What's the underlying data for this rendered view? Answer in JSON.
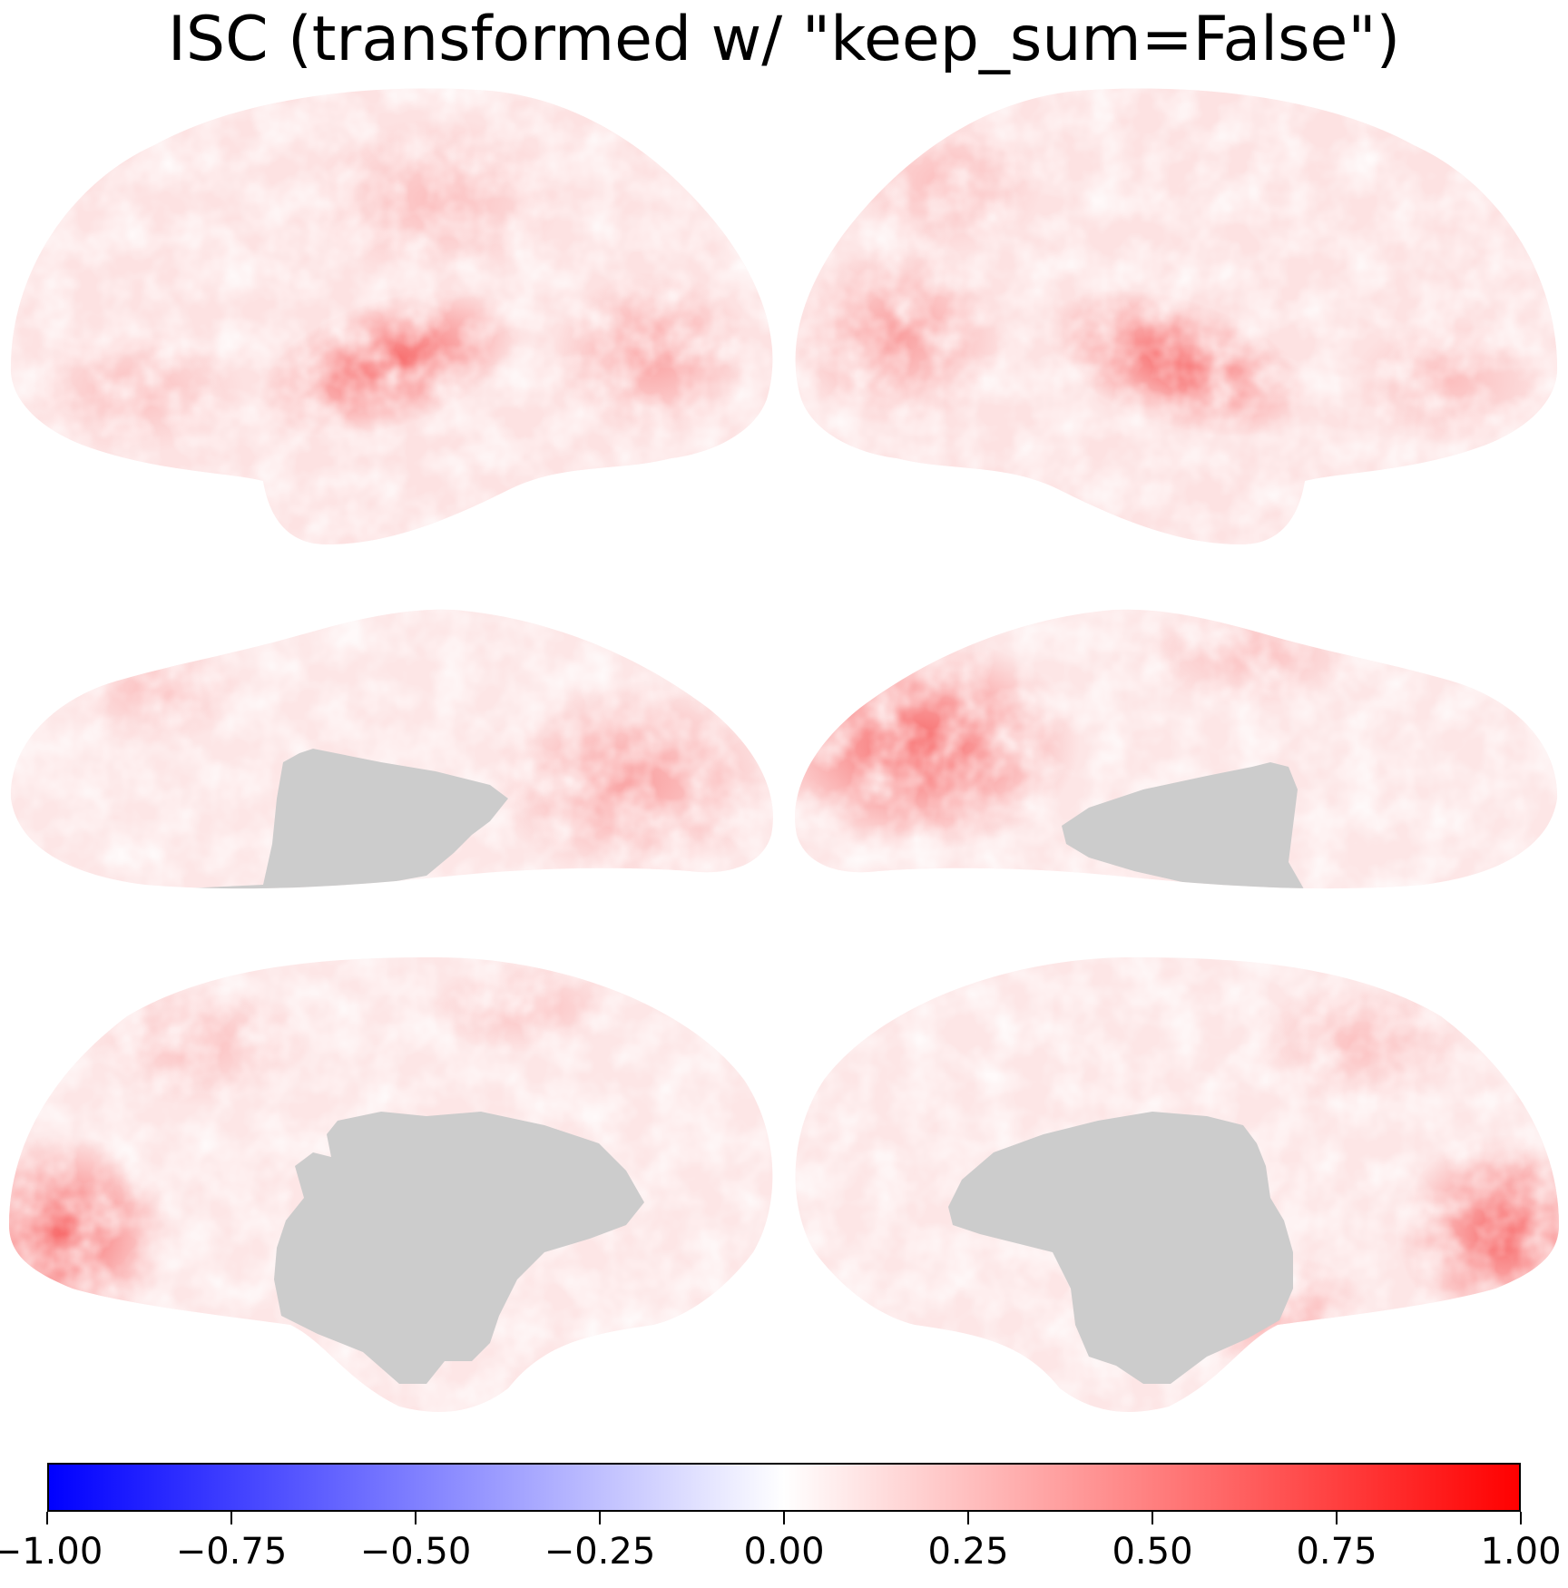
{
  "title": "ISC (transformed w/ \"keep_sum=False\")",
  "colormap": {
    "name": "bwr",
    "min": -1.0,
    "max": 1.0,
    "colors": {
      "low": "#0000ff",
      "mid": "#ffffff",
      "high": "#ff0000",
      "mask": "#cccccc"
    },
    "ticks": [
      -1.0,
      -0.75,
      -0.5,
      -0.25,
      0.0,
      0.25,
      0.5,
      0.75,
      1.0
    ],
    "tick_labels": [
      "−1.00",
      "−0.75",
      "−0.50",
      "−0.25",
      "0.00",
      "0.25",
      "0.50",
      "0.75",
      "1.00"
    ]
  },
  "views": [
    {
      "hemisphere": "left",
      "view": "lateral"
    },
    {
      "hemisphere": "right",
      "view": "lateral"
    },
    {
      "hemisphere": "left",
      "view": "ventral"
    },
    {
      "hemisphere": "right",
      "view": "ventral"
    },
    {
      "hemisphere": "left",
      "view": "medial"
    },
    {
      "hemisphere": "right",
      "view": "medial"
    }
  ]
}
